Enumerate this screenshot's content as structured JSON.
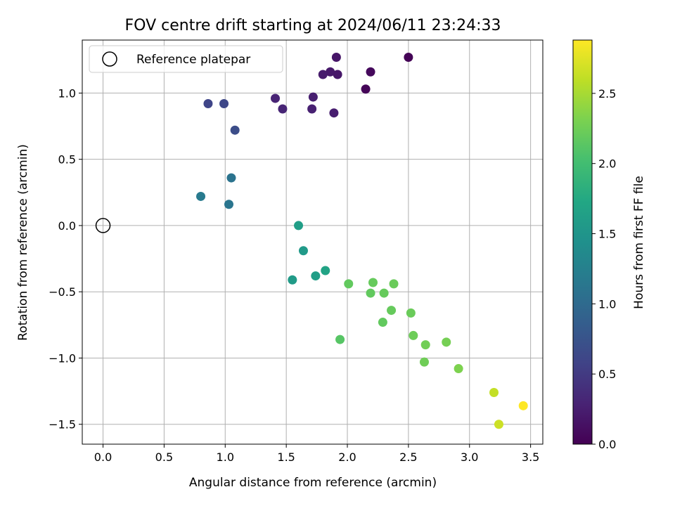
{
  "chart_data": {
    "type": "scatter",
    "title": "FOV centre drift starting at 2024/06/11 23:24:33",
    "xlabel": "Angular distance from reference (arcmin)",
    "ylabel": "Rotation from reference (arcmin)",
    "xlim": [
      -0.17,
      3.6
    ],
    "ylim": [
      -1.65,
      1.4
    ],
    "x_ticks": [
      0.0,
      0.5,
      1.0,
      1.5,
      2.0,
      2.5,
      3.0,
      3.5
    ],
    "x_tick_labels": [
      "0.0",
      "0.5",
      "1.0",
      "1.5",
      "2.0",
      "2.5",
      "3.0",
      "3.5"
    ],
    "y_ticks": [
      -1.5,
      -1.0,
      -0.5,
      0.0,
      0.5,
      1.0
    ],
    "y_tick_labels": [
      "−1.5",
      "−1.0",
      "−0.5",
      "0.0",
      "0.5",
      "1.0"
    ],
    "grid": true,
    "colormap": "viridis",
    "colorbar": {
      "label": "Hours from first FF file",
      "range": [
        0.0,
        2.88
      ],
      "ticks": [
        0.0,
        0.5,
        1.0,
        1.5,
        2.0,
        2.5
      ],
      "tick_labels": [
        "0.0",
        "0.5",
        "1.0",
        "1.5",
        "2.0",
        "2.5"
      ]
    },
    "legend": {
      "placement": "top-left",
      "entries": [
        {
          "label": "Reference platepar",
          "marker": "open-circle"
        }
      ]
    },
    "reference_point": {
      "x": 0.0,
      "y": 0.0
    },
    "points": [
      {
        "x": 2.5,
        "y": 1.27,
        "t": 0.02
      },
      {
        "x": 2.19,
        "y": 1.16,
        "t": 0.07
      },
      {
        "x": 2.15,
        "y": 1.03,
        "t": 0.04
      },
      {
        "x": 1.91,
        "y": 1.27,
        "t": 0.18
      },
      {
        "x": 1.86,
        "y": 1.16,
        "t": 0.2
      },
      {
        "x": 1.8,
        "y": 1.14,
        "t": 0.22
      },
      {
        "x": 1.92,
        "y": 1.14,
        "t": 0.19
      },
      {
        "x": 1.72,
        "y": 0.97,
        "t": 0.25
      },
      {
        "x": 1.71,
        "y": 0.88,
        "t": 0.27
      },
      {
        "x": 1.89,
        "y": 0.85,
        "t": 0.24
      },
      {
        "x": 1.41,
        "y": 0.96,
        "t": 0.3
      },
      {
        "x": 1.47,
        "y": 0.88,
        "t": 0.31
      },
      {
        "x": 0.86,
        "y": 0.92,
        "t": 0.6
      },
      {
        "x": 0.99,
        "y": 0.92,
        "t": 0.62
      },
      {
        "x": 1.08,
        "y": 0.72,
        "t": 0.68
      },
      {
        "x": 1.05,
        "y": 0.36,
        "t": 1.1
      },
      {
        "x": 0.8,
        "y": 0.22,
        "t": 1.17
      },
      {
        "x": 1.03,
        "y": 0.16,
        "t": 1.12
      },
      {
        "x": 1.6,
        "y": 0.0,
        "t": 1.62
      },
      {
        "x": 1.64,
        "y": -0.19,
        "t": 1.56
      },
      {
        "x": 1.82,
        "y": -0.34,
        "t": 1.68
      },
      {
        "x": 1.74,
        "y": -0.38,
        "t": 1.62
      },
      {
        "x": 1.55,
        "y": -0.41,
        "t": 1.58
      },
      {
        "x": 2.01,
        "y": -0.44,
        "t": 2.18
      },
      {
        "x": 2.21,
        "y": -0.43,
        "t": 2.2
      },
      {
        "x": 2.38,
        "y": -0.44,
        "t": 2.22
      },
      {
        "x": 2.19,
        "y": -0.51,
        "t": 2.18
      },
      {
        "x": 2.3,
        "y": -0.51,
        "t": 2.2
      },
      {
        "x": 2.36,
        "y": -0.64,
        "t": 2.2
      },
      {
        "x": 2.52,
        "y": -0.66,
        "t": 2.22
      },
      {
        "x": 2.29,
        "y": -0.73,
        "t": 2.18
      },
      {
        "x": 1.94,
        "y": -0.86,
        "t": 2.12
      },
      {
        "x": 2.54,
        "y": -0.83,
        "t": 2.24
      },
      {
        "x": 2.64,
        "y": -0.9,
        "t": 2.26
      },
      {
        "x": 2.81,
        "y": -0.88,
        "t": 2.28
      },
      {
        "x": 2.63,
        "y": -1.03,
        "t": 2.25
      },
      {
        "x": 2.91,
        "y": -1.08,
        "t": 2.32
      },
      {
        "x": 3.2,
        "y": -1.26,
        "t": 2.62
      },
      {
        "x": 3.24,
        "y": -1.5,
        "t": 2.66
      },
      {
        "x": 3.44,
        "y": -1.36,
        "t": 2.88
      }
    ]
  }
}
